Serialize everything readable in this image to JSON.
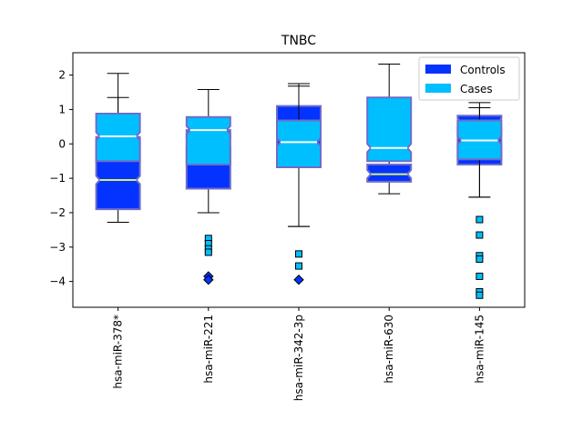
{
  "chart_data": {
    "type": "box",
    "title": "TNBC",
    "xlabel": "",
    "ylabel": "",
    "ylim": [
      -4.75,
      2.65
    ],
    "yticks": [
      2,
      1,
      0,
      -1,
      -2,
      -3,
      -4
    ],
    "ytick_labels": [
      "2",
      "1",
      "0",
      "−1",
      "−2",
      "−3",
      "−4"
    ],
    "grid": false,
    "legend_position": "top-right",
    "categories": [
      "hsa-miR-378*",
      "hsa-miR-221",
      "hsa-miR-342-3p",
      "hsa-miR-630",
      "hsa-miR-145"
    ],
    "series": [
      {
        "name": "Controls",
        "color": "#0433ff",
        "edge_color": "#6d6dc9",
        "median_color": "#d9f06a",
        "outlier_marker": "diamond",
        "boxes": [
          {
            "whislo": -2.28,
            "q1": -1.9,
            "med": -1.05,
            "q3": 0.2,
            "whishi": 2.05,
            "outliers": []
          },
          {
            "whislo": -2.0,
            "q1": -1.3,
            "med": 0.05,
            "q3": 0.4,
            "whishi": 1.58,
            "outliers": [
              -3.85,
              -3.95
            ]
          },
          {
            "whislo": -2.4,
            "q1": -0.55,
            "med": 0.5,
            "q3": 1.1,
            "whishi": 1.75,
            "outliers": [
              -3.95
            ]
          },
          {
            "whislo": -1.45,
            "q1": -1.1,
            "med": -0.88,
            "q3": -0.6,
            "whishi": -0.5,
            "outliers": []
          },
          {
            "whislo": -1.55,
            "q1": -0.6,
            "med": 0.62,
            "q3": 0.82,
            "whishi": 1.2,
            "outliers": []
          }
        ]
      },
      {
        "name": "Cases",
        "color": "#00bfff",
        "edge_color": "#6d6dc9",
        "median_color": "#ffffff",
        "outlier_marker": "square",
        "boxes": [
          {
            "whislo": -0.5,
            "q1": -0.5,
            "med": 0.22,
            "q3": 0.88,
            "whishi": 1.35,
            "outliers": []
          },
          {
            "whislo": -0.6,
            "q1": -0.6,
            "med": 0.4,
            "q3": 0.78,
            "whishi": 0.78,
            "outliers": [
              -2.75,
              -2.9,
              -3.05,
              -3.15
            ]
          },
          {
            "whislo": -2.4,
            "q1": -0.68,
            "med": 0.05,
            "q3": 0.68,
            "whishi": 1.68,
            "outliers": [
              -3.2,
              -3.55
            ]
          },
          {
            "whislo": -0.5,
            "q1": -0.5,
            "med": -0.12,
            "q3": 1.35,
            "whishi": 2.32,
            "outliers": []
          },
          {
            "whislo": -1.55,
            "q1": -0.45,
            "med": 0.1,
            "q3": 0.68,
            "whishi": 1.05,
            "outliers": [
              -2.2,
              -2.65,
              -3.25,
              -3.35,
              -3.85,
              -4.3,
              -4.4
            ]
          }
        ]
      }
    ]
  }
}
